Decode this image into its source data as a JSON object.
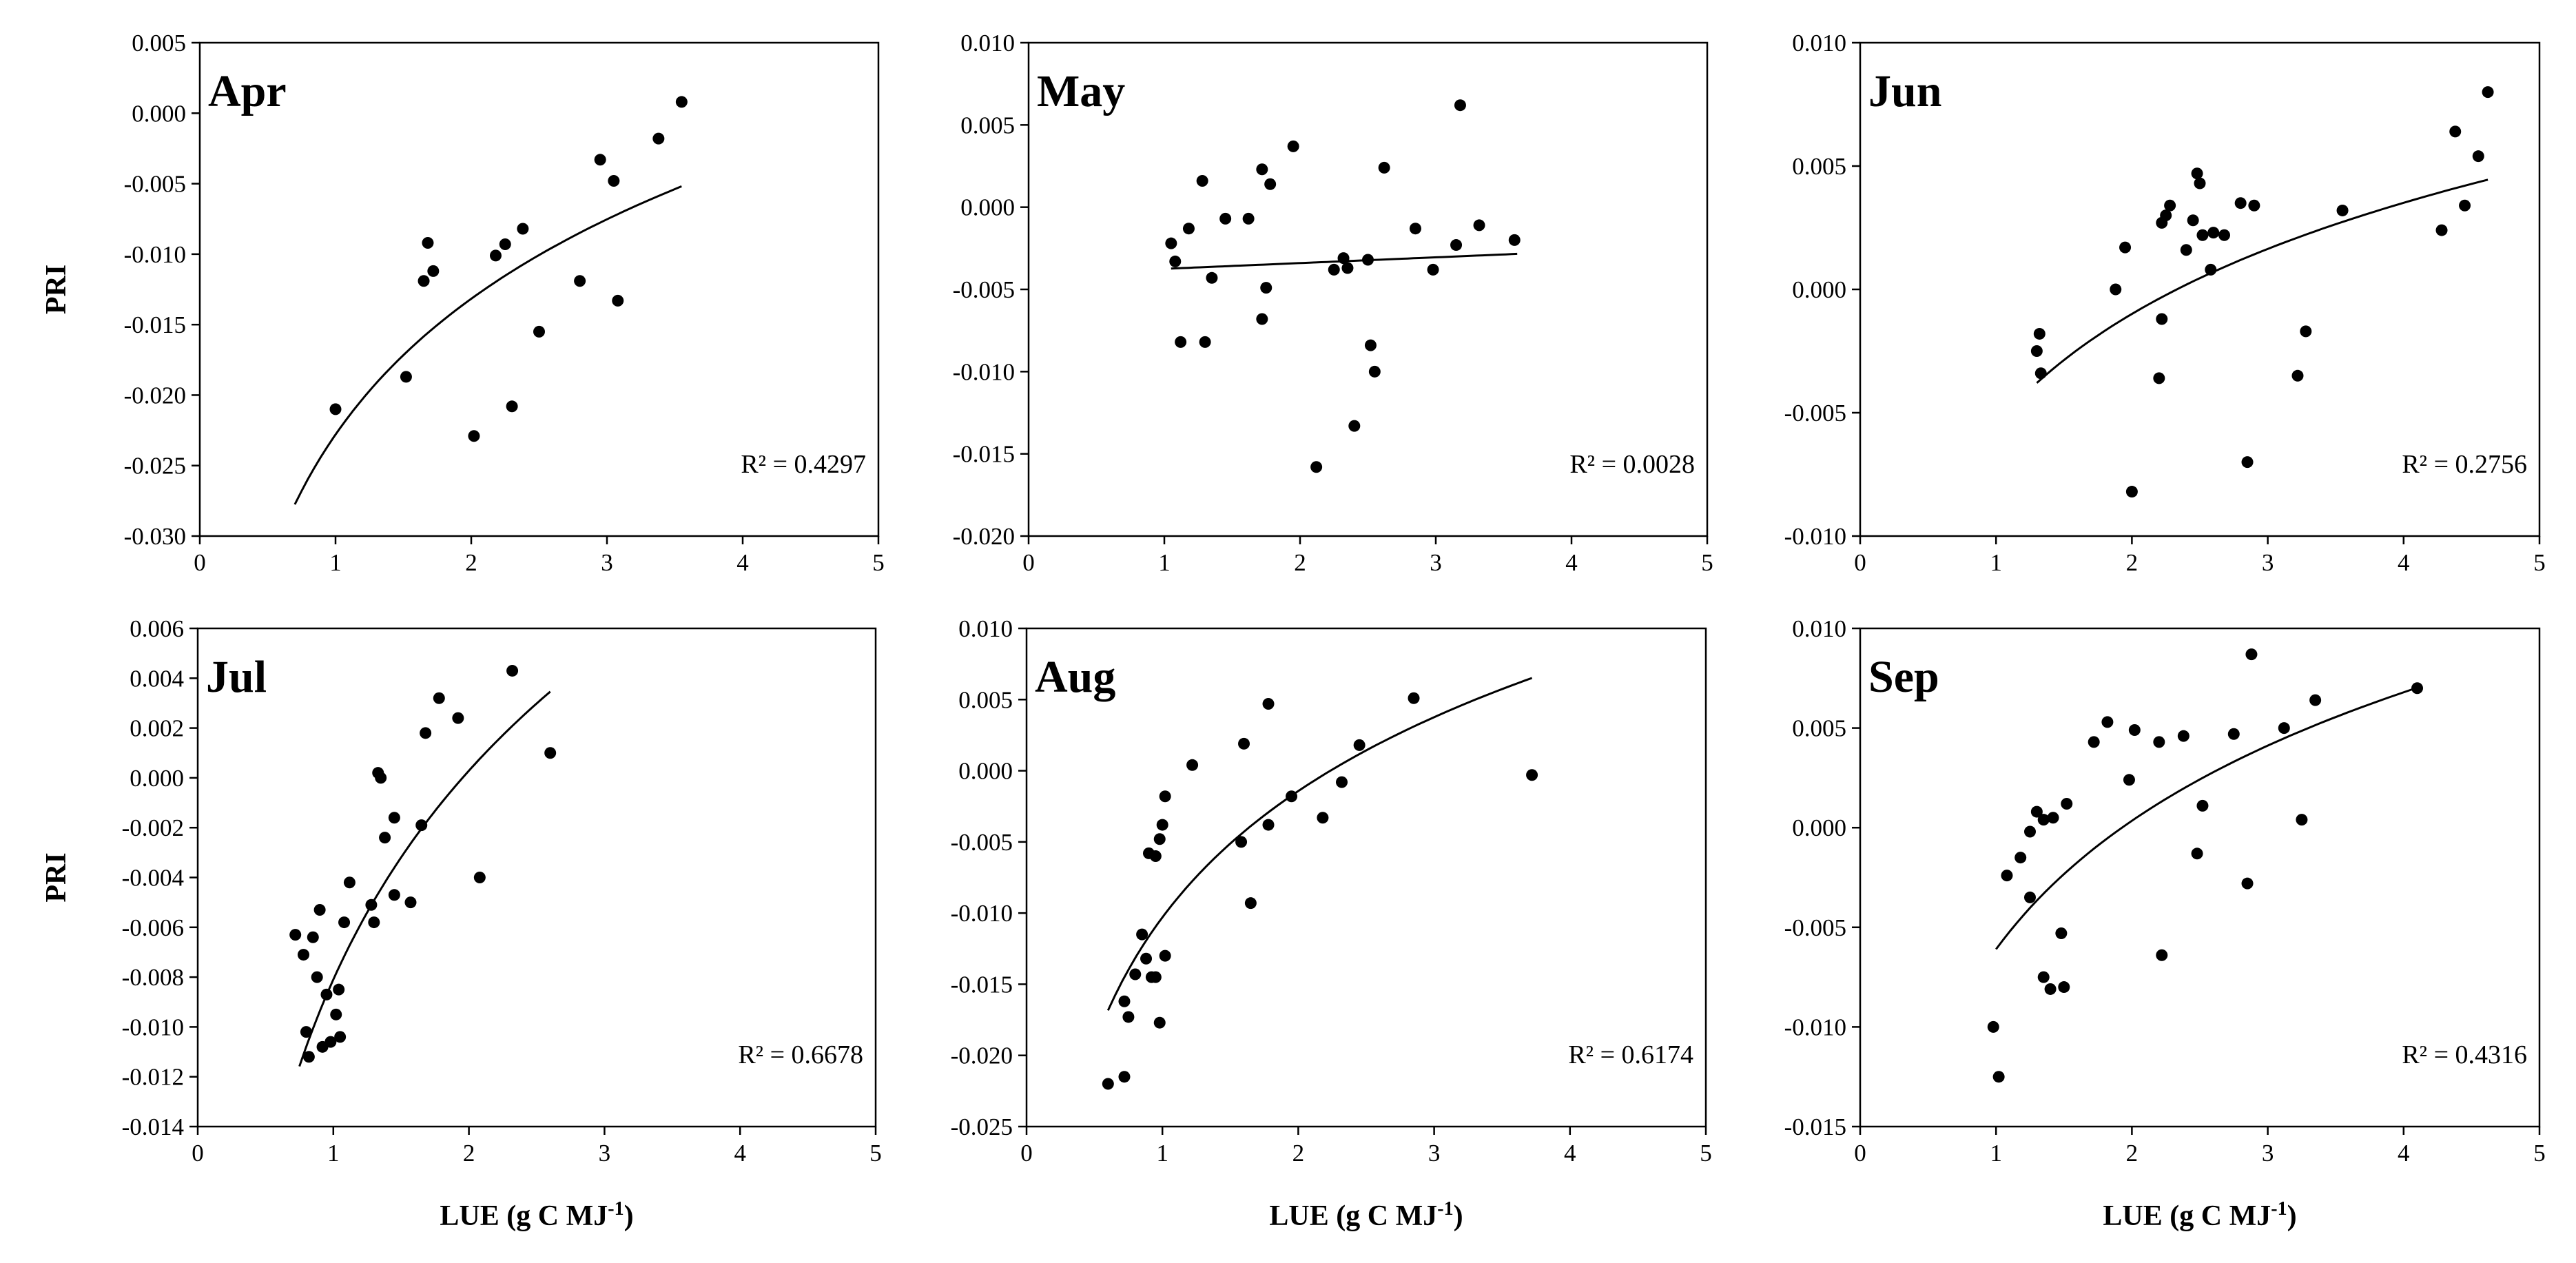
{
  "chart_data": [
    {
      "type": "scatter",
      "panel": "Apr",
      "r2_text": "R² = 0.4297",
      "ylabel": "PRI",
      "xlabel": "",
      "xlim": [
        0,
        5
      ],
      "ylim": [
        -0.03,
        0.005
      ],
      "x_ticks": [
        "0",
        "1",
        "2",
        "3",
        "4",
        "5"
      ],
      "y_ticks": [
        "-0.030",
        "-0.025",
        "-0.020",
        "-0.015",
        "-0.010",
        "-0.005",
        "0.000",
        "0.005"
      ],
      "points": [
        [
          1.0,
          -0.021
        ],
        [
          1.52,
          -0.0187
        ],
        [
          1.65,
          -0.0119
        ],
        [
          1.68,
          -0.0092
        ],
        [
          1.72,
          -0.0112
        ],
        [
          2.18,
          -0.0101
        ],
        [
          2.25,
          -0.0093
        ],
        [
          2.3,
          -0.0208
        ],
        [
          2.38,
          -0.0082
        ],
        [
          2.5,
          -0.0155
        ],
        [
          2.02,
          -0.0229
        ],
        [
          2.8,
          -0.0119
        ],
        [
          2.95,
          -0.0033
        ],
        [
          3.05,
          -0.0048
        ],
        [
          3.08,
          -0.0133
        ],
        [
          3.38,
          -0.0018
        ],
        [
          3.55,
          0.0008
        ]
      ],
      "fit": {
        "form": "logarithmic",
        "a": -0.0228,
        "b": 0.0139,
        "x_range": [
          0.7,
          3.55
        ]
      }
    },
    {
      "type": "scatter",
      "panel": "May",
      "r2_text": "R² = 0.0028",
      "ylabel": "",
      "xlabel": "",
      "xlim": [
        0,
        5
      ],
      "ylim": [
        -0.02,
        0.01
      ],
      "x_ticks": [
        "0",
        "1",
        "2",
        "3",
        "4",
        "5"
      ],
      "y_ticks": [
        "-0.020",
        "-0.015",
        "-0.010",
        "-0.005",
        "0.000",
        "0.005",
        "0.010"
      ],
      "points": [
        [
          1.05,
          -0.0022
        ],
        [
          1.08,
          -0.0033
        ],
        [
          1.12,
          -0.0082
        ],
        [
          1.18,
          -0.0013
        ],
        [
          1.28,
          0.0016
        ],
        [
          1.3,
          -0.0082
        ],
        [
          1.35,
          -0.0043
        ],
        [
          1.45,
          -0.0007
        ],
        [
          1.62,
          -0.0007
        ],
        [
          1.72,
          0.0023
        ],
        [
          1.75,
          -0.0049
        ],
        [
          1.72,
          -0.0068
        ],
        [
          1.78,
          0.0014
        ],
        [
          1.95,
          0.0037
        ],
        [
          2.12,
          -0.0158
        ],
        [
          2.25,
          -0.0038
        ],
        [
          2.32,
          -0.0031
        ],
        [
          2.35,
          -0.0037
        ],
        [
          2.4,
          -0.0133
        ],
        [
          2.5,
          -0.0032
        ],
        [
          2.52,
          -0.0084
        ],
        [
          2.55,
          -0.01
        ],
        [
          2.62,
          0.0024
        ],
        [
          2.85,
          -0.0013
        ],
        [
          2.98,
          -0.0038
        ],
        [
          3.15,
          -0.0023
        ],
        [
          3.18,
          0.0062
        ],
        [
          3.32,
          -0.0011
        ],
        [
          3.58,
          -0.002
        ]
      ],
      "fit": {
        "form": "linear",
        "a": -0.0041,
        "b": 0.00035,
        "x_range": [
          1.05,
          3.6
        ]
      }
    },
    {
      "type": "scatter",
      "panel": "Jun",
      "r2_text": "R² = 0.2756",
      "ylabel": "",
      "xlabel": "",
      "xlim": [
        0,
        5
      ],
      "ylim": [
        -0.01,
        0.01
      ],
      "x_ticks": [
        "0",
        "1",
        "2",
        "3",
        "4",
        "5"
      ],
      "y_ticks": [
        "-0.010",
        "-0.005",
        "0.000",
        "0.005",
        "0.010"
      ],
      "points": [
        [
          1.3,
          -0.0025
        ],
        [
          1.32,
          -0.0018
        ],
        [
          1.33,
          -0.0034
        ],
        [
          1.88,
          0.0
        ],
        [
          1.95,
          0.0017
        ],
        [
          2.0,
          -0.0082
        ],
        [
          2.2,
          -0.0036
        ],
        [
          2.22,
          -0.0012
        ],
        [
          2.22,
          0.0027
        ],
        [
          2.25,
          0.003
        ],
        [
          2.28,
          0.0034
        ],
        [
          2.4,
          0.0016
        ],
        [
          2.45,
          0.0028
        ],
        [
          2.48,
          0.0047
        ],
        [
          2.5,
          0.0043
        ],
        [
          2.52,
          0.0022
        ],
        [
          2.58,
          0.0008
        ],
        [
          2.6,
          0.0023
        ],
        [
          2.68,
          0.0022
        ],
        [
          2.8,
          0.0035
        ],
        [
          2.85,
          -0.007
        ],
        [
          2.9,
          0.0034
        ],
        [
          3.22,
          -0.0035
        ],
        [
          3.28,
          -0.0017
        ],
        [
          3.55,
          0.0032
        ],
        [
          4.28,
          0.0024
        ],
        [
          4.38,
          0.0064
        ],
        [
          4.45,
          0.0034
        ],
        [
          4.55,
          0.0054
        ],
        [
          4.62,
          0.008
        ]
      ],
      "fit": {
        "form": "logarithmic",
        "a": -0.0055,
        "b": 0.0065,
        "x_range": [
          1.3,
          4.62
        ]
      }
    },
    {
      "type": "scatter",
      "panel": "Jul",
      "r2_text": "R² = 0.6678",
      "ylabel": "PRI",
      "xlabel": "LUE (g C MJ-1)",
      "xlim": [
        0,
        5
      ],
      "ylim": [
        -0.014,
        0.006
      ],
      "x_ticks": [
        "0",
        "1",
        "2",
        "3",
        "4",
        "5"
      ],
      "y_ticks": [
        "-0.014",
        "-0.012",
        "-0.010",
        "-0.008",
        "-0.006",
        "-0.004",
        "-0.002",
        "0.000",
        "0.002",
        "0.004",
        "0.006"
      ],
      "points": [
        [
          0.72,
          -0.0063
        ],
        [
          0.78,
          -0.0071
        ],
        [
          0.8,
          -0.0102
        ],
        [
          0.82,
          -0.0112
        ],
        [
          0.85,
          -0.0064
        ],
        [
          0.88,
          -0.008
        ],
        [
          0.9,
          -0.0053
        ],
        [
          0.92,
          -0.0108
        ],
        [
          0.95,
          -0.0087
        ],
        [
          0.98,
          -0.0106
        ],
        [
          1.02,
          -0.0095
        ],
        [
          1.04,
          -0.0085
        ],
        [
          1.05,
          -0.0104
        ],
        [
          1.08,
          -0.0058
        ],
        [
          1.12,
          -0.0042
        ],
        [
          1.28,
          -0.0051
        ],
        [
          1.3,
          -0.0058
        ],
        [
          1.33,
          0.0002
        ],
        [
          1.35,
          0.0
        ],
        [
          1.38,
          -0.0024
        ],
        [
          1.45,
          -0.0016
        ],
        [
          1.45,
          -0.0047
        ],
        [
          1.57,
          -0.005
        ],
        [
          1.65,
          -0.0019
        ],
        [
          1.68,
          0.0018
        ],
        [
          1.78,
          0.0032
        ],
        [
          1.92,
          0.0024
        ],
        [
          2.08,
          -0.004
        ],
        [
          2.32,
          0.0043
        ],
        [
          2.6,
          0.001
        ]
      ],
      "fit": {
        "form": "logarithmic",
        "a": -0.0081,
        "b": 0.0121,
        "x_range": [
          0.75,
          2.6
        ]
      }
    },
    {
      "type": "scatter",
      "panel": "Aug",
      "r2_text": "R² = 0.6174",
      "ylabel": "",
      "xlabel": "LUE (g C MJ-1)",
      "xlim": [
        0,
        5
      ],
      "ylim": [
        -0.025,
        0.01
      ],
      "x_ticks": [
        "0",
        "1",
        "2",
        "3",
        "4",
        "5"
      ],
      "y_ticks": [
        "-0.025",
        "-0.020",
        "-0.015",
        "-0.010",
        "-0.005",
        "0.000",
        "0.005",
        "0.010"
      ],
      "points": [
        [
          0.6,
          -0.022
        ],
        [
          0.72,
          -0.0215
        ],
        [
          0.72,
          -0.0162
        ],
        [
          0.75,
          -0.0173
        ],
        [
          0.8,
          -0.0143
        ],
        [
          0.85,
          -0.0115
        ],
        [
          0.88,
          -0.0132
        ],
        [
          0.9,
          -0.0058
        ],
        [
          0.92,
          -0.0145
        ],
        [
          0.95,
          -0.006
        ],
        [
          0.95,
          -0.0145
        ],
        [
          0.98,
          -0.0177
        ],
        [
          0.98,
          -0.0048
        ],
        [
          1.0,
          -0.0038
        ],
        [
          1.02,
          -0.0018
        ],
        [
          1.02,
          -0.013
        ],
        [
          1.22,
          0.0004
        ],
        [
          1.58,
          -0.005
        ],
        [
          1.6,
          0.0019
        ],
        [
          1.65,
          -0.0093
        ],
        [
          1.78,
          -0.0038
        ],
        [
          1.78,
          0.0047
        ],
        [
          1.95,
          -0.0018
        ],
        [
          2.18,
          -0.0033
        ],
        [
          2.32,
          -0.0008
        ],
        [
          2.45,
          0.0018
        ],
        [
          2.85,
          0.0051
        ],
        [
          3.72,
          -0.0003
        ]
      ],
      "fit": {
        "form": "logarithmic",
        "a": -0.0103,
        "b": 0.0128,
        "x_range": [
          0.6,
          3.72
        ]
      }
    },
    {
      "type": "scatter",
      "panel": "Sep",
      "r2_text": "R² = 0.4316",
      "ylabel": "",
      "xlabel": "LUE (g C MJ-1)",
      "xlim": [
        0,
        5
      ],
      "ylim": [
        -0.015,
        0.01
      ],
      "x_ticks": [
        "0",
        "1",
        "2",
        "3",
        "4",
        "5"
      ],
      "y_ticks": [
        "-0.015",
        "-0.010",
        "-0.005",
        "0.000",
        "0.005",
        "0.010"
      ],
      "points": [
        [
          0.98,
          -0.01
        ],
        [
          1.02,
          -0.0125
        ],
        [
          1.08,
          -0.0024
        ],
        [
          1.18,
          -0.0015
        ],
        [
          1.25,
          -0.0035
        ],
        [
          1.25,
          -0.0002
        ],
        [
          1.3,
          0.0008
        ],
        [
          1.35,
          0.0004
        ],
        [
          1.35,
          -0.0075
        ],
        [
          1.4,
          -0.0081
        ],
        [
          1.42,
          0.0005
        ],
        [
          1.48,
          -0.0053
        ],
        [
          1.5,
          -0.008
        ],
        [
          1.52,
          0.0012
        ],
        [
          1.72,
          0.0043
        ],
        [
          1.82,
          0.0053
        ],
        [
          1.98,
          0.0024
        ],
        [
          2.02,
          0.0049
        ],
        [
          2.2,
          0.0043
        ],
        [
          2.22,
          -0.0064
        ],
        [
          2.38,
          0.0046
        ],
        [
          2.48,
          -0.0013
        ],
        [
          2.52,
          0.0011
        ],
        [
          2.75,
          0.0047
        ],
        [
          2.85,
          -0.0028
        ],
        [
          2.88,
          0.0087
        ],
        [
          3.12,
          0.005
        ],
        [
          3.25,
          0.0004
        ],
        [
          3.35,
          0.0064
        ],
        [
          4.1,
          0.007
        ]
      ],
      "fit": {
        "form": "logarithmic",
        "a": -0.0061,
        "b": 0.0093,
        "x_range": [
          1.0,
          4.1
        ]
      }
    }
  ]
}
